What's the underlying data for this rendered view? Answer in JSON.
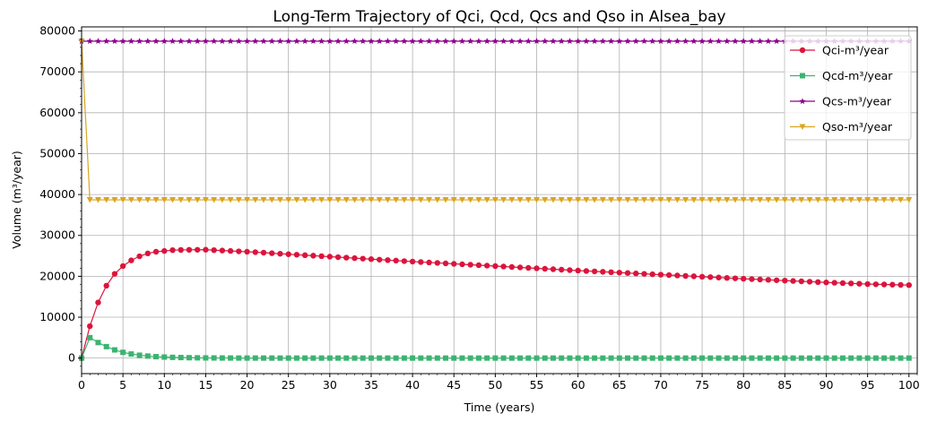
{
  "chart_data": {
    "type": "line",
    "title": "Long-Term Trajectory of Qci, Qcd, Qcs and Qso in Alsea_bay",
    "xlabel": "Time (years)",
    "ylabel": "Volume (m³/year)",
    "xlim": [
      0,
      101
    ],
    "ylim": [
      -3800,
      81000
    ],
    "xticks": [
      0,
      5,
      10,
      15,
      20,
      25,
      30,
      35,
      40,
      45,
      50,
      55,
      60,
      65,
      70,
      75,
      80,
      85,
      90,
      95,
      100
    ],
    "yticks": [
      0,
      10000,
      20000,
      30000,
      40000,
      50000,
      60000,
      70000,
      80000
    ],
    "grid": true,
    "legend_position": "top-right",
    "x": [
      0,
      1,
      2,
      3,
      4,
      5,
      6,
      7,
      8,
      9,
      10,
      11,
      12,
      13,
      14,
      15,
      16,
      17,
      18,
      19,
      20,
      21,
      22,
      23,
      24,
      25,
      26,
      27,
      28,
      29,
      30,
      31,
      32,
      33,
      34,
      35,
      36,
      37,
      38,
      39,
      40,
      41,
      42,
      43,
      44,
      45,
      46,
      47,
      48,
      49,
      50,
      51,
      52,
      53,
      54,
      55,
      56,
      57,
      58,
      59,
      60,
      61,
      62,
      63,
      64,
      65,
      66,
      67,
      68,
      69,
      70,
      71,
      72,
      73,
      74,
      75,
      76,
      77,
      78,
      79,
      80,
      81,
      82,
      83,
      84,
      85,
      86,
      87,
      88,
      89,
      90,
      91,
      92,
      93,
      94,
      95,
      96,
      97,
      98,
      99,
      100
    ],
    "series": [
      {
        "name": "Qci-m³/year",
        "color": "#dc143c",
        "marker": "circle",
        "values": [
          0,
          7800,
          13600,
          17700,
          20600,
          22500,
          23900,
          24900,
          25600,
          26000,
          26200,
          26400,
          26450,
          26480,
          26490,
          26500,
          26400,
          26300,
          26200,
          26100,
          26000,
          25900,
          25780,
          25650,
          25520,
          25400,
          25280,
          25160,
          25040,
          24920,
          24800,
          24680,
          24560,
          24440,
          24320,
          24200,
          24080,
          23960,
          23840,
          23720,
          23600,
          23490,
          23380,
          23270,
          23160,
          23050,
          22940,
          22830,
          22720,
          22610,
          22500,
          22390,
          22280,
          22170,
          22060,
          21950,
          21840,
          21730,
          21620,
          21510,
          21400,
          21300,
          21200,
          21100,
          21000,
          20900,
          20800,
          20700,
          20600,
          20500,
          20400,
          20300,
          20200,
          20100,
          20000,
          19900,
          19800,
          19700,
          19600,
          19500,
          19400,
          19310,
          19220,
          19130,
          19040,
          18950,
          18860,
          18770,
          18680,
          18590,
          18500,
          18420,
          18340,
          18260,
          18180,
          18100,
          18050,
          18000,
          17950,
          17900,
          17850
        ]
      },
      {
        "name": "Qcd-m³/year",
        "color": "#3cb371",
        "marker": "square",
        "values": [
          0,
          5000,
          3800,
          2800,
          2000,
          1400,
          1000,
          700,
          500,
          350,
          250,
          180,
          130,
          90,
          60,
          40,
          30,
          20,
          15,
          10,
          8,
          6,
          5,
          4,
          3,
          2,
          2,
          1,
          1,
          1,
          0,
          0,
          0,
          0,
          0,
          0,
          0,
          0,
          0,
          0,
          0,
          0,
          0,
          0,
          0,
          0,
          0,
          0,
          0,
          0,
          0,
          0,
          0,
          0,
          0,
          0,
          0,
          0,
          0,
          0,
          0,
          0,
          0,
          0,
          0,
          0,
          0,
          0,
          0,
          0,
          0,
          0,
          0,
          0,
          0,
          0,
          0,
          0,
          0,
          0,
          0,
          0,
          0,
          0,
          0,
          0,
          0,
          0,
          0,
          0,
          0,
          0,
          0,
          0,
          0,
          0,
          0,
          0,
          0,
          0,
          0
        ]
      },
      {
        "name": "Qcs-m³/year",
        "color": "#8b008b",
        "marker": "star",
        "values": [
          77500,
          77500,
          77500,
          77500,
          77500,
          77500,
          77500,
          77500,
          77500,
          77500,
          77500,
          77500,
          77500,
          77500,
          77500,
          77500,
          77500,
          77500,
          77500,
          77500,
          77500,
          77500,
          77500,
          77500,
          77500,
          77500,
          77500,
          77500,
          77500,
          77500,
          77500,
          77500,
          77500,
          77500,
          77500,
          77500,
          77500,
          77500,
          77500,
          77500,
          77500,
          77500,
          77500,
          77500,
          77500,
          77500,
          77500,
          77500,
          77500,
          77500,
          77500,
          77500,
          77500,
          77500,
          77500,
          77500,
          77500,
          77500,
          77500,
          77500,
          77500,
          77500,
          77500,
          77500,
          77500,
          77500,
          77500,
          77500,
          77500,
          77500,
          77500,
          77500,
          77500,
          77500,
          77500,
          77500,
          77500,
          77500,
          77500,
          77500,
          77500,
          77500,
          77500,
          77500,
          77500,
          77500,
          77500,
          77500,
          77500,
          77500,
          77500,
          77500,
          77500,
          77500,
          77500,
          77500,
          77500,
          77500,
          77500,
          77500,
          77500
        ]
      },
      {
        "name": "Qso-m³/year",
        "color": "#daa520",
        "marker": "triangle-down",
        "values": [
          77500,
          38700,
          38700,
          38700,
          38700,
          38700,
          38700,
          38700,
          38700,
          38700,
          38700,
          38700,
          38700,
          38700,
          38700,
          38700,
          38700,
          38700,
          38700,
          38700,
          38700,
          38700,
          38700,
          38700,
          38700,
          38700,
          38700,
          38700,
          38700,
          38700,
          38700,
          38700,
          38700,
          38700,
          38700,
          38700,
          38700,
          38700,
          38700,
          38700,
          38700,
          38700,
          38700,
          38700,
          38700,
          38700,
          38700,
          38700,
          38700,
          38700,
          38700,
          38700,
          38700,
          38700,
          38700,
          38700,
          38700,
          38700,
          38700,
          38700,
          38700,
          38700,
          38700,
          38700,
          38700,
          38700,
          38700,
          38700,
          38700,
          38700,
          38700,
          38700,
          38700,
          38700,
          38700,
          38700,
          38700,
          38700,
          38700,
          38700,
          38700,
          38700,
          38700,
          38700,
          38700,
          38700,
          38700,
          38700,
          38700,
          38700,
          38700,
          38700,
          38700,
          38700,
          38700,
          38700,
          38700,
          38700,
          38700,
          38700,
          38700
        ]
      }
    ]
  }
}
